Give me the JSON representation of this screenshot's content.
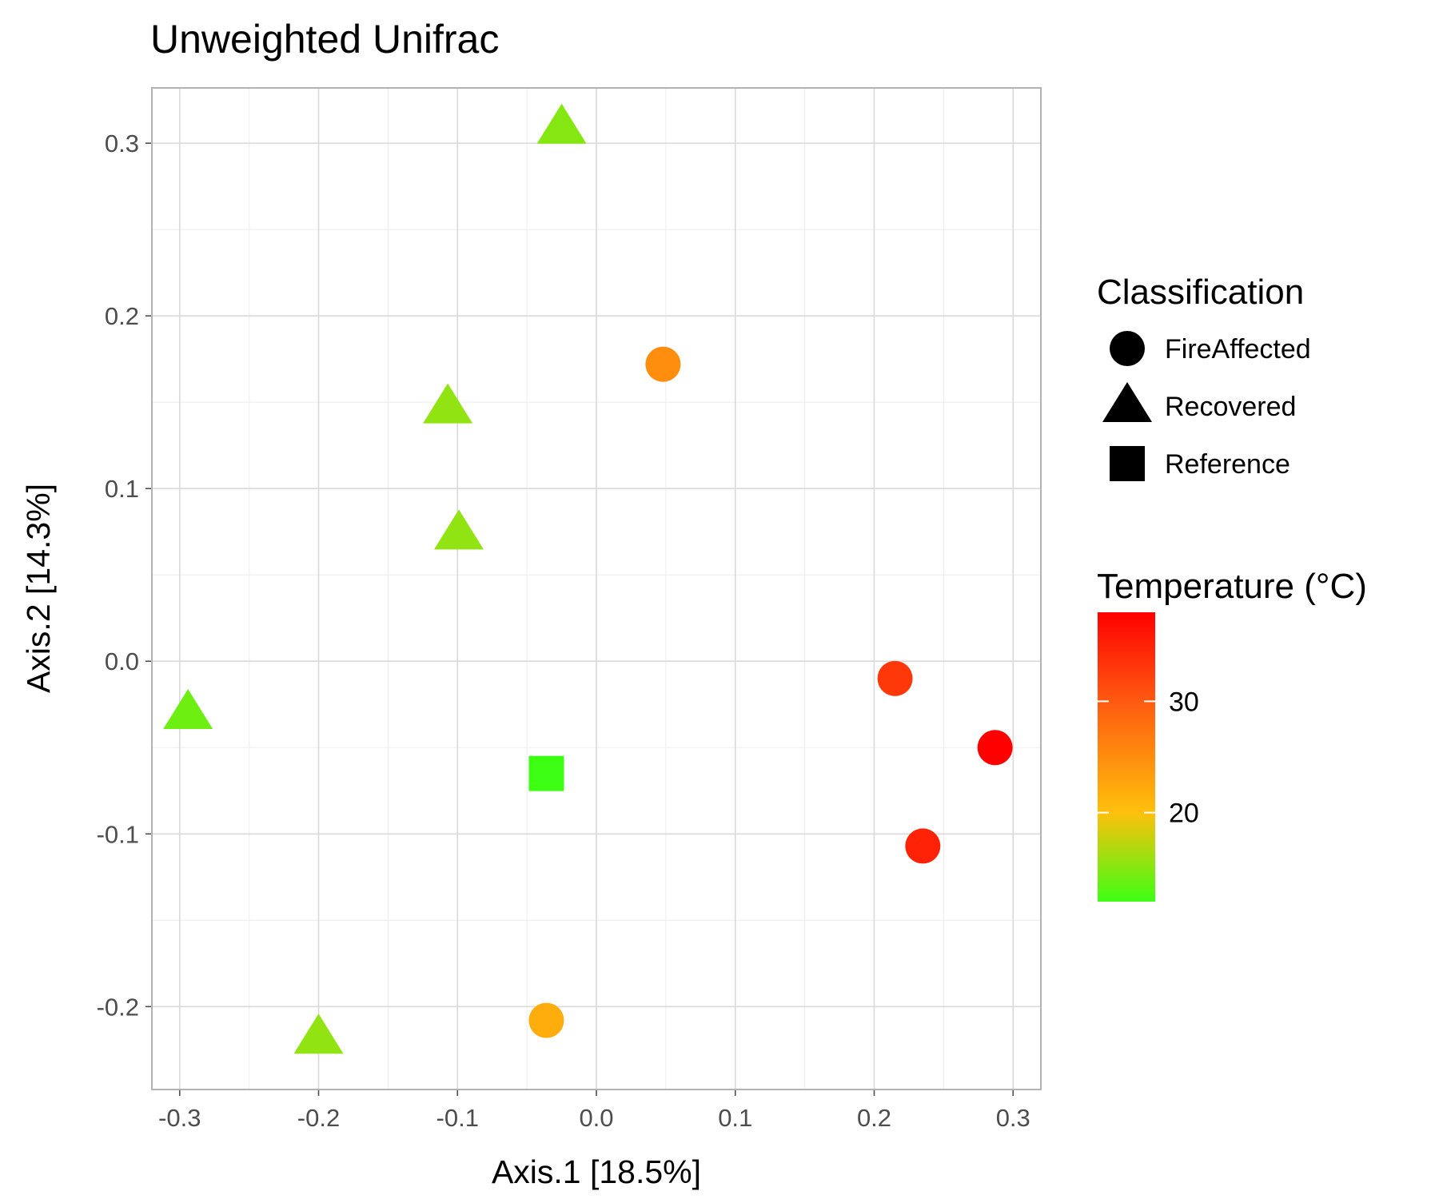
{
  "chart_data": {
    "type": "scatter",
    "title": "Unweighted Unifrac",
    "xlabel": "Axis.1   [18.5%]",
    "ylabel": "Axis.2   [14.3%]",
    "xlim": [
      -0.32,
      0.32
    ],
    "ylim": [
      -0.248,
      0.332
    ],
    "x_ticks": [
      -0.3,
      -0.2,
      -0.1,
      0.0,
      0.1,
      0.2,
      0.3
    ],
    "x_tick_labels": [
      "-0.3",
      "-0.2",
      "-0.1",
      "0.0",
      "0.1",
      "0.2",
      "0.3"
    ],
    "y_ticks": [
      -0.2,
      -0.1,
      0.0,
      0.1,
      0.2,
      0.3
    ],
    "y_tick_labels": [
      "-0.2",
      "-0.1",
      "0.0",
      "0.1",
      "0.2",
      "0.3"
    ],
    "grid": true,
    "legend_position": "right",
    "shape_legend": {
      "title": "Classification",
      "entries": [
        {
          "label": "FireAffected",
          "shape": "circle"
        },
        {
          "label": "Recovered",
          "shape": "triangle"
        },
        {
          "label": "Reference",
          "shape": "square"
        }
      ]
    },
    "color_legend": {
      "title": "Temperature (°C)",
      "min": 12,
      "max": 38,
      "ticks": [
        20,
        30
      ],
      "tick_labels": [
        "20",
        "30"
      ],
      "gradient": [
        {
          "value": 12,
          "color": "#3cff14"
        },
        {
          "value": 20,
          "color": "#ffc00c"
        },
        {
          "value": 30,
          "color": "#ff5a10"
        },
        {
          "value": 38,
          "color": "#ff0000"
        }
      ]
    },
    "points": [
      {
        "x": -0.025,
        "y": 0.309,
        "classification": "Recovered",
        "temperature": 15
      },
      {
        "x": 0.048,
        "y": 0.172,
        "classification": "FireAffected",
        "temperature": 25
      },
      {
        "x": -0.107,
        "y": 0.147,
        "classification": "Recovered",
        "temperature": 15.5
      },
      {
        "x": -0.099,
        "y": 0.074,
        "classification": "Recovered",
        "temperature": 15.5
      },
      {
        "x": -0.294,
        "y": -0.03,
        "classification": "Recovered",
        "temperature": 14
      },
      {
        "x": -0.036,
        "y": -0.065,
        "classification": "Reference",
        "temperature": 12
      },
      {
        "x": 0.215,
        "y": -0.01,
        "classification": "FireAffected",
        "temperature": 33
      },
      {
        "x": 0.287,
        "y": -0.05,
        "classification": "FireAffected",
        "temperature": 38
      },
      {
        "x": 0.235,
        "y": -0.107,
        "classification": "FireAffected",
        "temperature": 35
      },
      {
        "x": -0.2,
        "y": -0.218,
        "classification": "Recovered",
        "temperature": 15.5
      },
      {
        "x": -0.036,
        "y": -0.208,
        "classification": "FireAffected",
        "temperature": 22
      }
    ]
  }
}
